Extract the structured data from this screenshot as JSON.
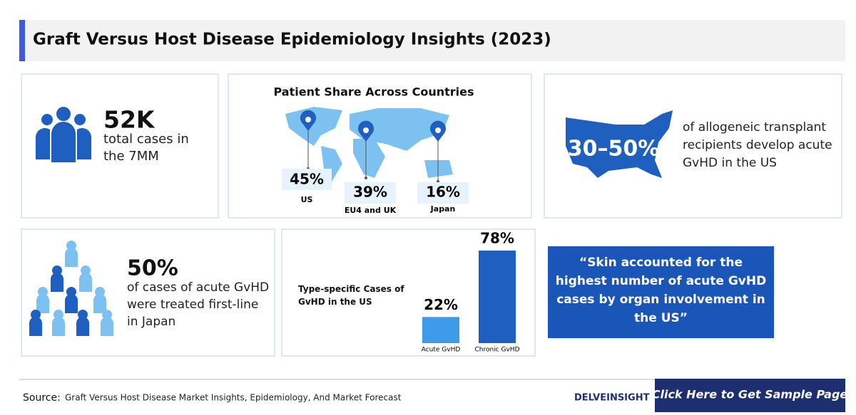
{
  "header": {
    "title": "Graft Versus Host Disease Epidemiology Insights (2023)"
  },
  "total_cases": {
    "value": "52K",
    "text": "total cases in the 7MM"
  },
  "patient_share": {
    "title": "Patient Share Across Countries",
    "regions": [
      {
        "value": "45%",
        "label": "US"
      },
      {
        "value": "39%",
        "label": "EU4 and UK"
      },
      {
        "value": "16%",
        "label": "Japan"
      }
    ]
  },
  "us_acute": {
    "value": "30–50%",
    "text": "of allogeneic transplant recipients develop acute GvHD in the US"
  },
  "first_line": {
    "value": "50%",
    "text": "of cases of acute GvHD were treated first-line in Japan"
  },
  "chart_data": {
    "type": "bar",
    "title": "Type-specific Cases of GvHD in the US",
    "categories": [
      "Acute GvHD",
      "Chronic GvHD"
    ],
    "values": [
      22,
      78
    ],
    "value_labels": [
      "22%",
      "78%"
    ],
    "colors": [
      "#3d9be9",
      "#1e5fbf"
    ]
  },
  "quote": "“Skin accounted for the highest number of acute GvHD cases by organ involvement in the US”",
  "footer": {
    "source_label": "Source:",
    "source": "Graft Versus Host Disease Market Insights, Epidemiology, And Market Forecast",
    "logo": "DELVEINSIGHT",
    "button": "Click Here to Get Sample Page"
  }
}
